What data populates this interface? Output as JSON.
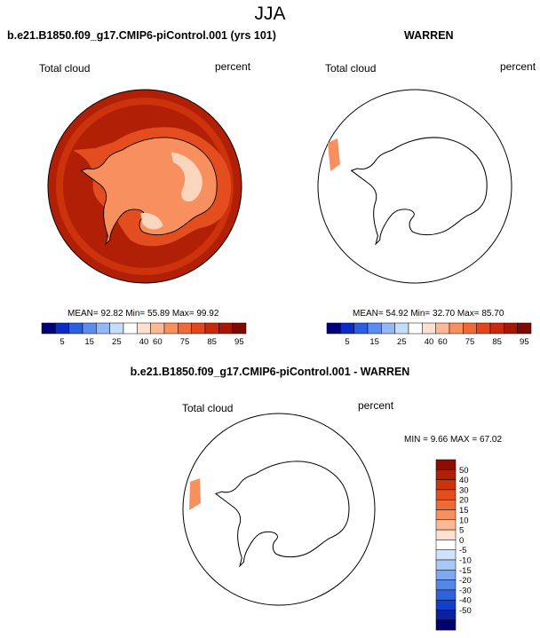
{
  "page": {
    "title": "JJA"
  },
  "panels": [
    {
      "title": "b.e21.B1850.f09_g17.CMIP6-piControl.001 (yrs 101)",
      "variable": "Total cloud",
      "units": "percent",
      "stats": "MEAN=  92.82  Min=  55.89  Max=  99.92"
    },
    {
      "title": "WARREN",
      "variable": "Total cloud",
      "units": "percent",
      "stats": "MEAN=  54.92  Min=  32.70  Max=  85.70"
    },
    {
      "title": "b.e21.B1850.f09_g17.CMIP6-piControl.001 - WARREN",
      "variable": "Total cloud",
      "units": "percent",
      "stats": "MIN =   9.66 MAX =  67.02"
    }
  ],
  "colorbar_abs": {
    "labels": [
      "5",
      "15",
      "25",
      "40",
      "60",
      "75",
      "85",
      "95"
    ],
    "colors": [
      "#00007a",
      "#0b2cc4",
      "#2a5fe0",
      "#5b8cf0",
      "#94b7f6",
      "#c6dcfb",
      "#ffffff",
      "#fde0cf",
      "#fbb995",
      "#f7905e",
      "#f06a37",
      "#e2461c",
      "#c82a0c",
      "#a81706",
      "#7e0a02"
    ]
  },
  "colorbar_diff": {
    "labels": [
      "50",
      "40",
      "30",
      "20",
      "15",
      "10",
      "5",
      "0",
      "-5",
      "-10",
      "-15",
      "-20",
      "-30",
      "-40",
      "-50"
    ],
    "colors": [
      "#8a0e02",
      "#b01f06",
      "#cc330c",
      "#e44e1e",
      "#f06a37",
      "#f7905e",
      "#fbb995",
      "#fde0cf",
      "#ffffff",
      "#cfe2fb",
      "#a9c7f6",
      "#7ea8f0",
      "#5587e8",
      "#2e63de",
      "#123fc8",
      "#0a21a0",
      "#000070"
    ]
  },
  "map_colors": {
    "ocean_base": "#b01f06",
    "ocean_mid": "#cc330c",
    "ocean_light": "#e44e1e",
    "cloud_lighter": "#f7905e",
    "cloud_lightest": "#fbd6be",
    "diff_strip": "#f7905e",
    "coast": "#000000"
  }
}
